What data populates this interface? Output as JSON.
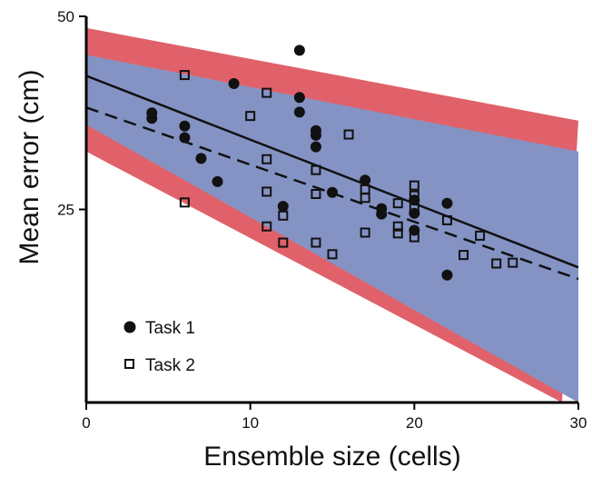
{
  "chart_data": {
    "type": "scatter",
    "xlabel": "Ensemble size (cells)",
    "ylabel": "Mean error (cm)",
    "xlim": [
      0,
      30
    ],
    "ylim": [
      0,
      50
    ],
    "x_ticks": [
      "0",
      "10",
      "20",
      "30"
    ],
    "y_ticks": [
      "25",
      "50"
    ],
    "grid": false,
    "legend_position": "bottom-left",
    "colors": {
      "task1_band": "#e0616a",
      "task2_band": "#8ab8e6",
      "overlap": "#8493c4",
      "axis": "#000000"
    },
    "bands": [
      {
        "name": "task1",
        "upper": [
          [
            0,
            48.5
          ],
          [
            30,
            36.5
          ]
        ],
        "lower": [
          [
            0,
            32.5
          ],
          [
            29,
            0
          ]
        ]
      },
      {
        "name": "task2",
        "upper": [
          [
            0,
            45.0
          ],
          [
            30,
            32.5
          ]
        ],
        "lower": [
          [
            0,
            36.0
          ],
          [
            30,
            0
          ]
        ]
      }
    ],
    "fit_lines": [
      {
        "series": "Task 1",
        "style": "solid",
        "points": [
          [
            0,
            42.3
          ],
          [
            30,
            17.5
          ]
        ]
      },
      {
        "series": "Task 2",
        "style": "dashed",
        "points": [
          [
            0,
            38.2
          ],
          [
            30,
            16.0
          ]
        ]
      }
    ],
    "series": [
      {
        "name": "Task 1",
        "marker": "filled-circle",
        "points": [
          [
            4,
            37.5
          ],
          [
            4,
            36.8
          ],
          [
            6,
            35.8
          ],
          [
            6,
            34.3
          ],
          [
            7,
            31.6
          ],
          [
            8,
            28.6
          ],
          [
            9,
            41.3
          ],
          [
            12,
            25.4
          ],
          [
            13,
            45.6
          ],
          [
            13,
            39.5
          ],
          [
            13,
            37.6
          ],
          [
            14,
            35.2
          ],
          [
            14,
            34.6
          ],
          [
            14,
            33.1
          ],
          [
            15,
            27.2
          ],
          [
            17,
            28.8
          ],
          [
            18,
            25.1
          ],
          [
            18,
            24.4
          ],
          [
            20,
            26.2
          ],
          [
            20,
            24.5
          ],
          [
            20,
            22.3
          ],
          [
            22,
            25.8
          ],
          [
            22,
            16.5
          ]
        ]
      },
      {
        "name": "Task 2",
        "marker": "open-square",
        "points": [
          [
            6,
            42.4
          ],
          [
            6,
            25.9
          ],
          [
            10,
            37.1
          ],
          [
            11,
            40.1
          ],
          [
            11,
            31.5
          ],
          [
            11,
            27.3
          ],
          [
            11,
            22.8
          ],
          [
            12,
            24.2
          ],
          [
            12,
            20.7
          ],
          [
            14,
            30.1
          ],
          [
            14,
            27.0
          ],
          [
            14,
            20.7
          ],
          [
            15,
            19.2
          ],
          [
            16,
            34.7
          ],
          [
            17,
            27.6
          ],
          [
            17,
            26.5
          ],
          [
            17,
            22.0
          ],
          [
            19,
            25.8
          ],
          [
            19,
            22.8
          ],
          [
            19,
            21.9
          ],
          [
            20,
            28.1
          ],
          [
            20,
            26.8
          ],
          [
            20,
            25.2
          ],
          [
            20,
            21.4
          ],
          [
            22,
            23.6
          ],
          [
            23,
            19.1
          ],
          [
            24,
            21.6
          ],
          [
            25,
            18.0
          ],
          [
            26,
            18.1
          ]
        ]
      }
    ]
  }
}
